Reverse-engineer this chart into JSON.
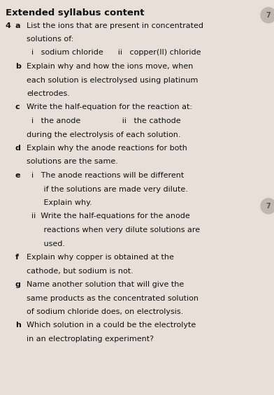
{
  "bg_color": "#e8e0d8",
  "title": "Extended syllabus content",
  "title_fontsize": 9.5,
  "body_fontsize": 8.0,
  "figwidth": 3.92,
  "figheight": 5.65,
  "dpi": 100,
  "text_color": "#111111",
  "icon_color": "#aaaaaa",
  "lines": [
    {
      "type": "title",
      "text": "Extended syllabus content"
    },
    {
      "type": "body",
      "col0": "4",
      "col1": "a",
      "col2": "List the ions that are present in concentrated"
    },
    {
      "type": "body",
      "col0": "",
      "col1": "",
      "col2": "solutions of:"
    },
    {
      "type": "body",
      "col0": "",
      "col1": "",
      "col2": "  i   sodium chloride      ii   copper(II) chloride"
    },
    {
      "type": "body",
      "col0": "",
      "col1": "b",
      "col2": "Explain why and how the ions move, when"
    },
    {
      "type": "body",
      "col0": "",
      "col1": "",
      "col2": "each solution is electrolysed using platinum"
    },
    {
      "type": "body",
      "col0": "",
      "col1": "",
      "col2": "electrodes."
    },
    {
      "type": "body",
      "col0": "",
      "col1": "c",
      "col2": "Write the half-equation for the reaction at:"
    },
    {
      "type": "body",
      "col0": "",
      "col1": "",
      "col2": "  i   the anode                 ii   the cathode"
    },
    {
      "type": "body",
      "col0": "",
      "col1": "",
      "col2": "during the electrolysis of each solution."
    },
    {
      "type": "body",
      "col0": "",
      "col1": "d",
      "col2": "Explain why the anode reactions for both"
    },
    {
      "type": "body",
      "col0": "",
      "col1": "",
      "col2": "solutions are the same."
    },
    {
      "type": "body",
      "col0": "",
      "col1": "e",
      "col2": "  i   The anode reactions will be different"
    },
    {
      "type": "body",
      "col0": "",
      "col1": "",
      "col2": "       if the solutions are made very dilute."
    },
    {
      "type": "body",
      "col0": "",
      "col1": "",
      "col2": "       Explain why."
    },
    {
      "type": "body",
      "col0": "",
      "col1": "",
      "col2": "  ii  Write the half-equations for the anode"
    },
    {
      "type": "body",
      "col0": "",
      "col1": "",
      "col2": "       reactions when very dilute solutions are"
    },
    {
      "type": "body",
      "col0": "",
      "col1": "",
      "col2": "       used."
    },
    {
      "type": "body",
      "col0": "",
      "col1": "f",
      "col2": "Explain why copper is obtained at the"
    },
    {
      "type": "body",
      "col0": "",
      "col1": "",
      "col2": "cathode, but sodium is not."
    },
    {
      "type": "body",
      "col0": "",
      "col1": "g",
      "col2": "Name another solution that will give the"
    },
    {
      "type": "body",
      "col0": "",
      "col1": "",
      "col2": "same products as the concentrated solution"
    },
    {
      "type": "body",
      "col0": "",
      "col1": "",
      "col2": "of sodium chloride does, on electrolysis."
    },
    {
      "type": "body",
      "col0": "",
      "col1": "h",
      "col2": "Which solution in a could be the electrolyte"
    },
    {
      "type": "body",
      "col0": "",
      "col1": "",
      "col2": "in an electroplating experiment?"
    }
  ],
  "icon1_line": 1,
  "icon2_line": 15
}
